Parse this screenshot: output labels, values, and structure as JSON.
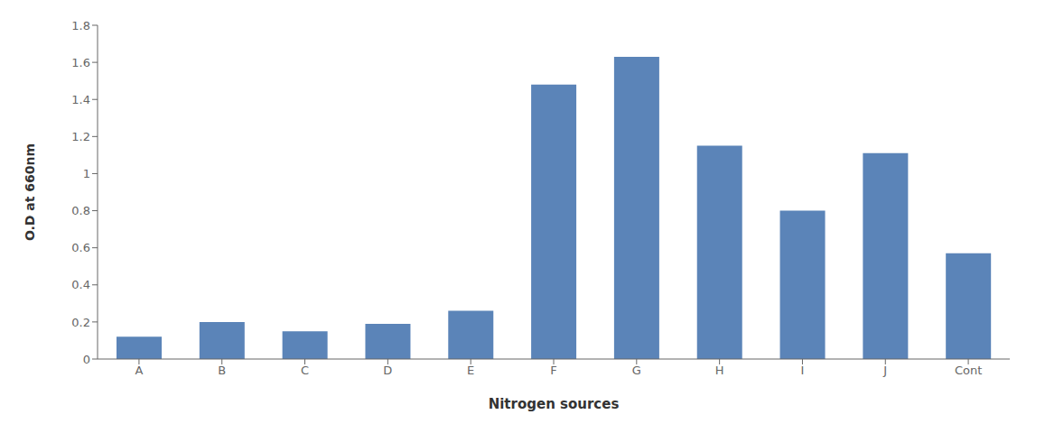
{
  "chart_data": {
    "type": "bar",
    "categories": [
      "A",
      "B",
      "C",
      "D",
      "E",
      "F",
      "G",
      "H",
      "I",
      "J",
      "Cont"
    ],
    "values": [
      0.12,
      0.2,
      0.15,
      0.19,
      0.26,
      1.48,
      1.63,
      1.15,
      0.8,
      1.11,
      0.57
    ],
    "color": "#5b84b8",
    "xlabel": "Nitrogen sources",
    "ylabel": "O.D at 660nm",
    "ylim": [
      0,
      1.8
    ],
    "yticks": [
      0,
      0.2,
      0.4,
      0.6,
      0.8,
      1.0,
      1.2,
      1.4,
      1.6,
      1.8
    ],
    "grid": false
  }
}
